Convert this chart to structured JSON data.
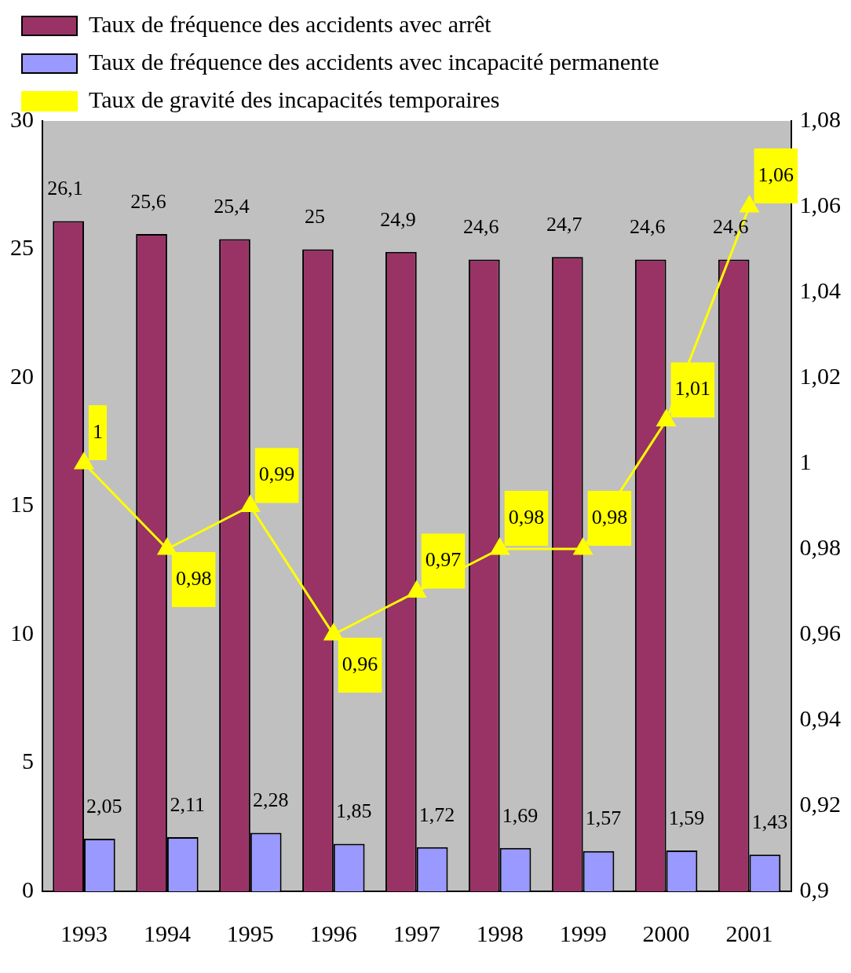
{
  "chart_data": {
    "type": "bar",
    "categories": [
      "1993",
      "1994",
      "1995",
      "1996",
      "1997",
      "1998",
      "1999",
      "2000",
      "2001"
    ],
    "series": [
      {
        "name": "Taux de fréquence des accidents avec arrêt",
        "color": "#993366",
        "values": [
          26.1,
          25.6,
          25.4,
          25,
          24.9,
          24.6,
          24.7,
          24.6,
          24.6
        ],
        "value_labels": [
          "26,1",
          "25,6",
          "25,4",
          "25",
          "24,9",
          "24,6",
          "24,7",
          "24,6",
          "24,6"
        ]
      },
      {
        "name": "Taux de fréquence des accidents avec incapacité permanente",
        "color": "#9999ff",
        "values": [
          2.05,
          2.11,
          2.28,
          1.85,
          1.72,
          1.69,
          1.57,
          1.59,
          1.43
        ],
        "value_labels": [
          "2,05",
          "2,11",
          "2,28",
          "1,85",
          "1,72",
          "1,69",
          "1,57",
          "1,59",
          "1,43"
        ]
      },
      {
        "name": "Taux de gravité des incapacités temporaires",
        "type": "line",
        "axis": "y2",
        "color": "#ffff00",
        "values": [
          1,
          0.98,
          0.99,
          0.96,
          0.97,
          0.98,
          0.98,
          1.01,
          1.06
        ],
        "value_labels": [
          "1",
          "0,98",
          "0,99",
          "0,96",
          "0,97",
          "0,98",
          "0,98",
          "1,01",
          "1,06"
        ]
      }
    ],
    "ylim": [
      0,
      30
    ],
    "yticks": [
      0,
      5,
      10,
      15,
      20,
      25,
      30
    ],
    "y2lim": [
      0.9,
      1.08
    ],
    "y2ticks": [
      {
        "value": 0.9,
        "label": "0,9"
      },
      {
        "value": 0.92,
        "label": "0,92"
      },
      {
        "value": 0.94,
        "label": "0,94"
      },
      {
        "value": 0.96,
        "label": "0,96"
      },
      {
        "value": 0.98,
        "label": "0,98"
      },
      {
        "value": 1,
        "label": "1"
      },
      {
        "value": 1.02,
        "label": "1,02"
      },
      {
        "value": 1.04,
        "label": "1,04"
      },
      {
        "value": 1.06,
        "label": "1,06"
      },
      {
        "value": 1.08,
        "label": "1,08"
      }
    ],
    "legend": "top",
    "marker": "triangle"
  }
}
